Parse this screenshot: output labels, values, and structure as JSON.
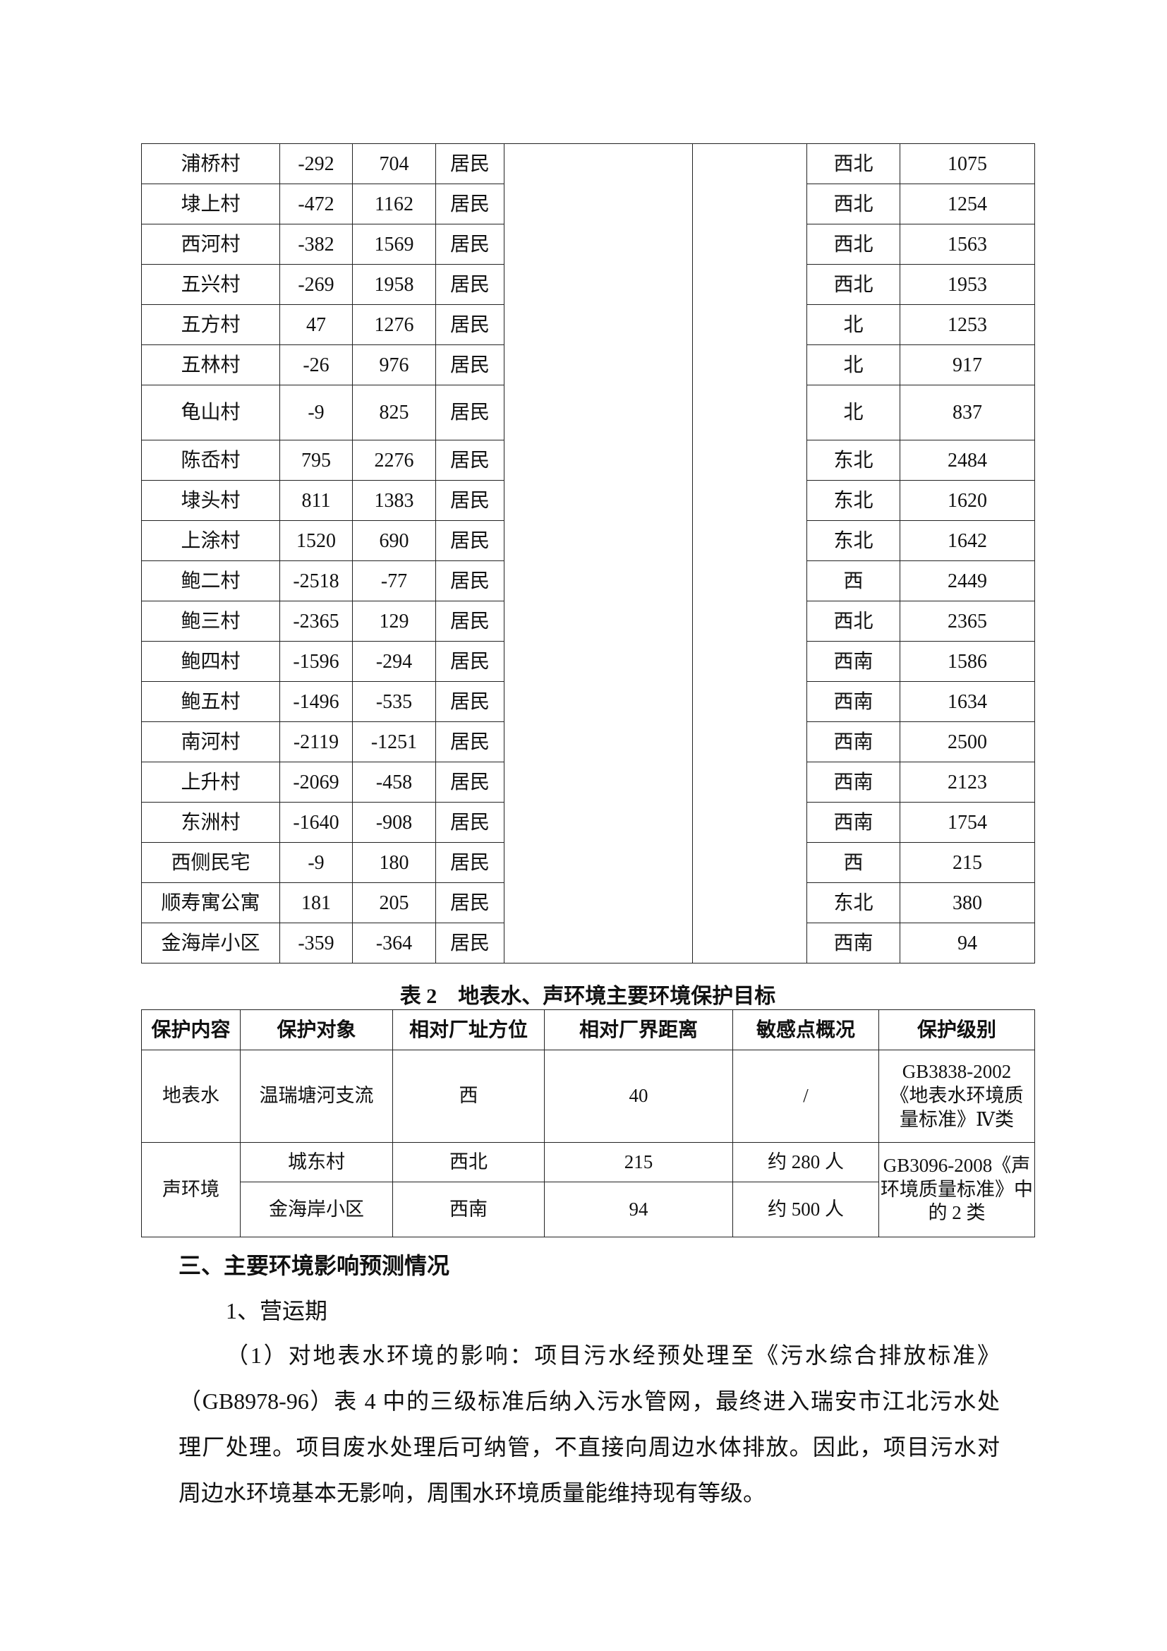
{
  "table1": {
    "rows": [
      {
        "name": "浦桥村",
        "x": "-292",
        "y": "704",
        "type": "居民",
        "direction": "西北",
        "distance": "1075"
      },
      {
        "name": "埭上村",
        "x": "-472",
        "y": "1162",
        "type": "居民",
        "direction": "西北",
        "distance": "1254"
      },
      {
        "name": "西河村",
        "x": "-382",
        "y": "1569",
        "type": "居民",
        "direction": "西北",
        "distance": "1563"
      },
      {
        "name": "五兴村",
        "x": "-269",
        "y": "1958",
        "type": "居民",
        "direction": "西北",
        "distance": "1953"
      },
      {
        "name": "五方村",
        "x": "47",
        "y": "1276",
        "type": "居民",
        "direction": "北",
        "distance": "1253"
      },
      {
        "name": "五林村",
        "x": "-26",
        "y": "976",
        "type": "居民",
        "direction": "北",
        "distance": "917"
      },
      {
        "name": "龟山村",
        "x": "-9",
        "y": "825",
        "type": "居民",
        "direction": "北",
        "distance": "837"
      },
      {
        "name": "陈岙村",
        "x": "795",
        "y": "2276",
        "type": "居民",
        "direction": "东北",
        "distance": "2484"
      },
      {
        "name": "埭头村",
        "x": "811",
        "y": "1383",
        "type": "居民",
        "direction": "东北",
        "distance": "1620"
      },
      {
        "name": "上涂村",
        "x": "1520",
        "y": "690",
        "type": "居民",
        "direction": "东北",
        "distance": "1642"
      },
      {
        "name": "鲍二村",
        "x": "-2518",
        "y": "-77",
        "type": "居民",
        "direction": "西",
        "distance": "2449"
      },
      {
        "name": "鲍三村",
        "x": "-2365",
        "y": "129",
        "type": "居民",
        "direction": "西北",
        "distance": "2365"
      },
      {
        "name": "鲍四村",
        "x": "-1596",
        "y": "-294",
        "type": "居民",
        "direction": "西南",
        "distance": "1586"
      },
      {
        "name": "鲍五村",
        "x": "-1496",
        "y": "-535",
        "type": "居民",
        "direction": "西南",
        "distance": "1634"
      },
      {
        "name": "南河村",
        "x": "-2119",
        "y": "-1251",
        "type": "居民",
        "direction": "西南",
        "distance": "2500"
      },
      {
        "name": "上升村",
        "x": "-2069",
        "y": "-458",
        "type": "居民",
        "direction": "西南",
        "distance": "2123"
      },
      {
        "name": "东洲村",
        "x": "-1640",
        "y": "-908",
        "type": "居民",
        "direction": "西南",
        "distance": "1754"
      },
      {
        "name": "西侧民宅",
        "x": "-9",
        "y": "180",
        "type": "居民",
        "direction": "西",
        "distance": "215"
      },
      {
        "name": "顺寿寓公寓",
        "x": "181",
        "y": "205",
        "type": "居民",
        "direction": "东北",
        "distance": "380"
      },
      {
        "name": "金海岸小区",
        "x": "-359",
        "y": "-364",
        "type": "居民",
        "direction": "西南",
        "distance": "94"
      }
    ]
  },
  "table2": {
    "caption": "表 2　地表水、声环境主要环境保护目标",
    "headers": [
      "保护内容",
      "保护对象",
      "相对厂址方位",
      "相对厂界距离",
      "敏感点概况",
      "保护级别"
    ],
    "surface_water": {
      "category": "地表水",
      "target": "温瑞塘河支流",
      "direction": "西",
      "distance": "40",
      "overview": "/",
      "level": "GB3838-2002《地表水环境质量标准》Ⅳ类"
    },
    "noise": {
      "category": "声环境",
      "level": "GB3096-2008《声环境质量标准》中的 2 类",
      "rows": [
        {
          "target": "城东村",
          "direction": "西北",
          "distance": "215",
          "overview": "约 280 人"
        },
        {
          "target": "金海岸小区",
          "direction": "西南",
          "distance": "94",
          "overview": "约 500 人"
        }
      ]
    }
  },
  "section": {
    "heading": "三、主要环境影响预测情况",
    "subheading": "1、营运期",
    "paragraph_lines": [
      "（1）对地表水环境的影响：项目污水经预处理至《污水综合排放标准》",
      "（GB8978-96）表 4 中的三级标准后纳入污水管网，最终进入瑞安市江北污水处",
      "理厂处理。项目废水处理后可纳管，不直接向周边水体排放。因此，项目污水对",
      "周边水环境基本无影响，周围水环境质量能维持现有等级。"
    ]
  }
}
